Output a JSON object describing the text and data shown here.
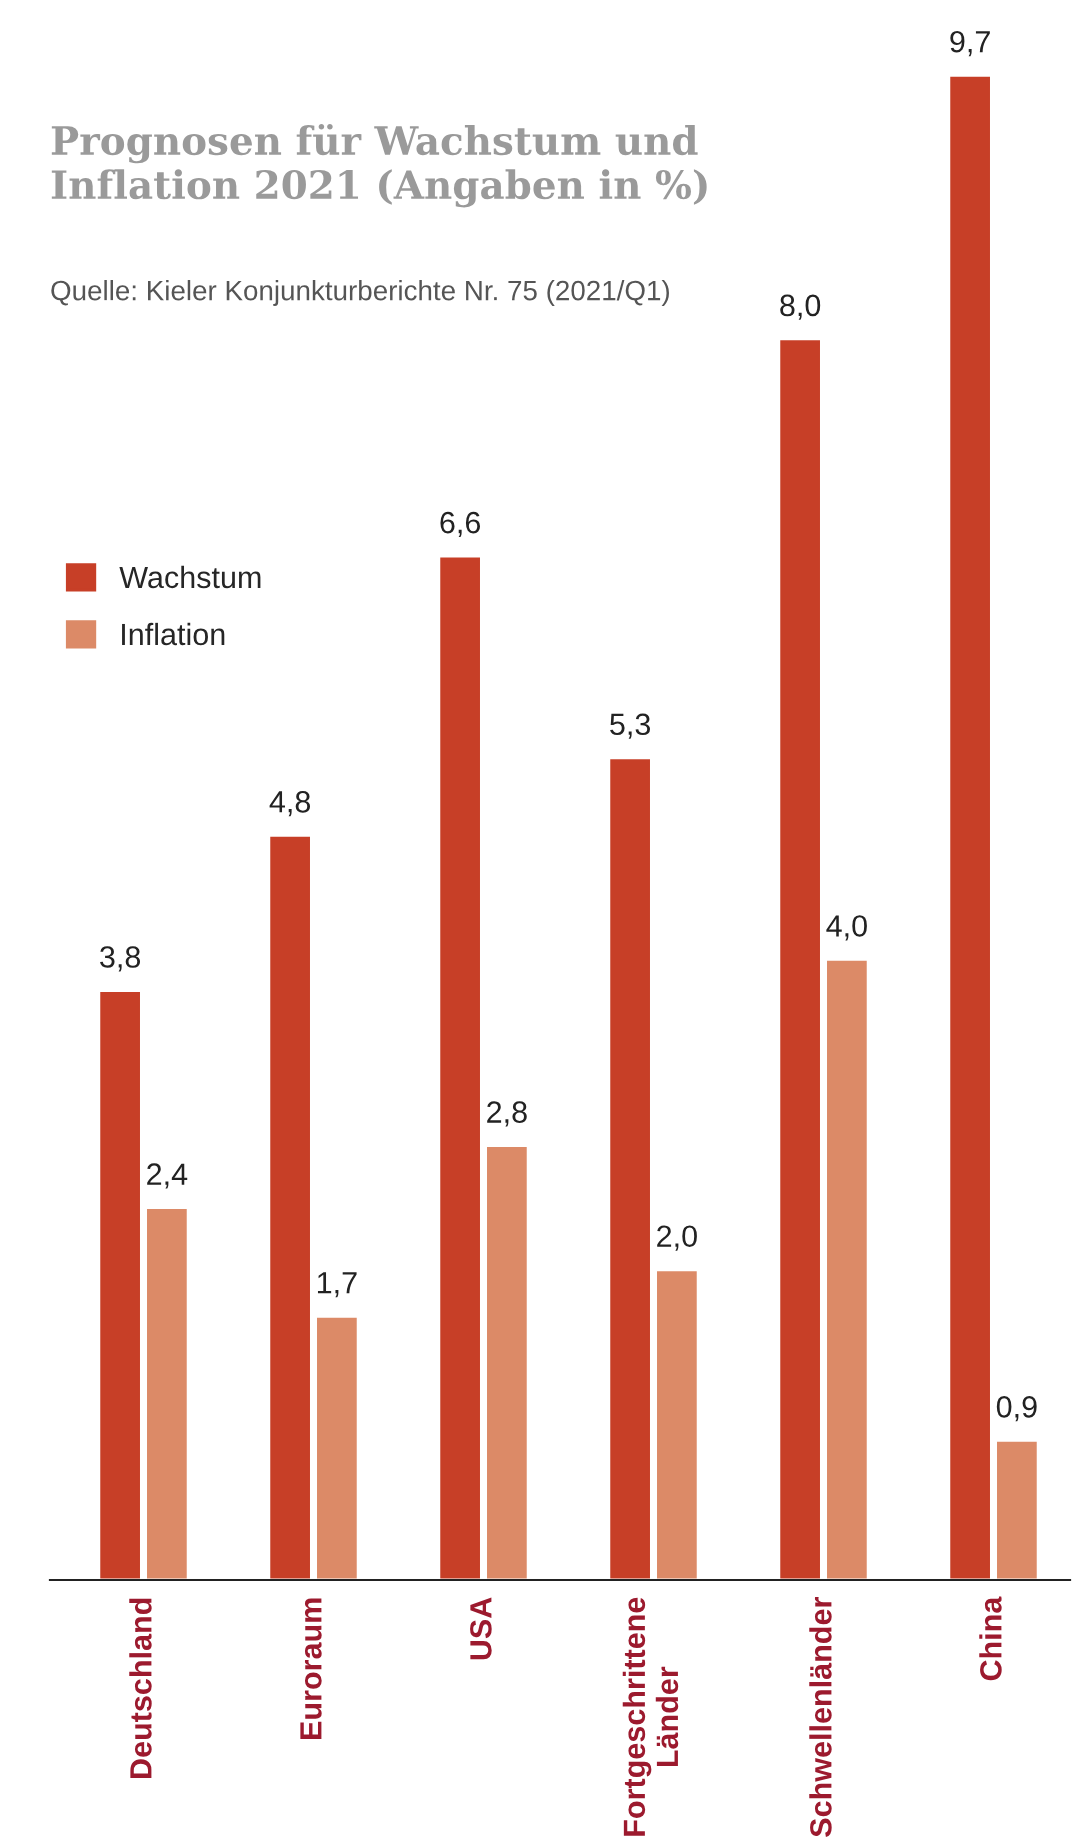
{
  "chart_data": {
    "type": "bar",
    "title": "Prognosen für Wachstum und Inflation 2021 (Angaben in %)",
    "annotations": [
      "Quelle: Kieler Konjunkturberichte Nr. 75 (2021/Q1)"
    ],
    "categories": [
      "Deutschland",
      "Euroraum",
      "USA",
      "Fortgeschrittene Länder",
      "Schwellenländer",
      "China"
    ],
    "series": [
      {
        "name": "Wachstum",
        "color": "#c73f27",
        "values": [
          3.8,
          4.8,
          6.6,
          5.3,
          8.0,
          9.7
        ],
        "value_labels": [
          "3,8",
          "4,8",
          "6,6",
          "5,3",
          "8,0",
          "9,7"
        ]
      },
      {
        "name": "Inflation",
        "color": "#dc8a67",
        "values": [
          2.4,
          1.7,
          2.8,
          2.0,
          4.0,
          0.9
        ],
        "value_labels": [
          "2,4",
          "1,7",
          "2,8",
          "2,0",
          "4,0",
          "0,9"
        ]
      }
    ],
    "legend": "top left",
    "grid": false
  }
}
